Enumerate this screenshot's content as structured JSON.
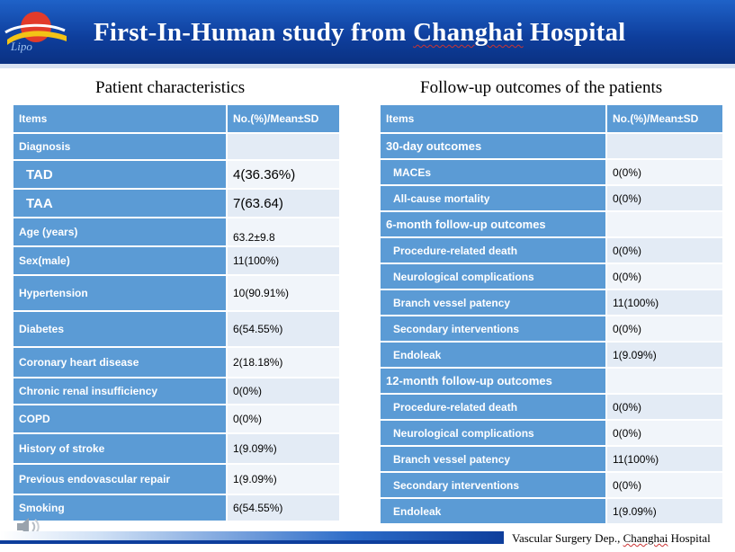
{
  "header": {
    "title_pre": "First-In-Human study from ",
    "title_underlined": "Changhai",
    "title_post": " Hospital"
  },
  "left": {
    "heading": "Patient characteristics",
    "col1": "Items",
    "col2": "No.(%)/Mean±SD",
    "rows": [
      {
        "label": "Diagnosis",
        "value": ""
      },
      {
        "label": "TAD",
        "value": "4(36.36%)"
      },
      {
        "label": "TAA",
        "value": "7(63.64)"
      },
      {
        "label": "Age (years)",
        "value": "63.2±9.8"
      },
      {
        "label": "Sex(male)",
        "value": "11(100%)"
      },
      {
        "label": "Hypertension",
        "value": "10(90.91%)"
      },
      {
        "label": "Diabetes",
        "value": "6(54.55%)"
      },
      {
        "label": "Coronary heart disease",
        "value": "2(18.18%)"
      },
      {
        "label": "Chronic renal insufficiency",
        "value": "0(0%)"
      },
      {
        "label": "COPD",
        "value": "0(0%)"
      },
      {
        "label": "History of stroke",
        "value": "1(9.09%)"
      },
      {
        "label": "Previous endovascular repair",
        "value": "1(9.09%)"
      },
      {
        "label": "Smoking",
        "value": "6(54.55%)"
      }
    ]
  },
  "right": {
    "heading": "Follow-up outcomes of the patients",
    "col1": "Items",
    "col2": "No.(%)/Mean±SD",
    "rows": [
      {
        "label": "30-day outcomes",
        "value": ""
      },
      {
        "label": "MACEs",
        "value": "0(0%)"
      },
      {
        "label": "All-cause mortality",
        "value": "0(0%)"
      },
      {
        "label": "6-month follow-up outcomes",
        "value": ""
      },
      {
        "label": "Procedure-related death",
        "value": "0(0%)"
      },
      {
        "label": "Neurological complications",
        "value": "0(0%)"
      },
      {
        "label": "Branch vessel patency",
        "value": "11(100%)"
      },
      {
        "label": "Secondary interventions",
        "value": "0(0%)"
      },
      {
        "label": "Endoleak",
        "value": "1(9.09%)"
      },
      {
        "label": "12-month follow-up outcomes",
        "value": ""
      },
      {
        "label": "Procedure-related death",
        "value": "0(0%)"
      },
      {
        "label": "Neurological complications",
        "value": "0(0%)"
      },
      {
        "label": "Branch vessel patency",
        "value": "11(100%)"
      },
      {
        "label": "Secondary interventions",
        "value": "0(0%)"
      },
      {
        "label": "Endoleak",
        "value": "1(9.09%)"
      }
    ]
  },
  "footer": {
    "pre": "Vascular Surgery Dep., ",
    "underlined": "Changhai",
    "post": " Hospital"
  },
  "colors": {
    "accent": "#5b9bd5",
    "banner": "#0e3e9c"
  },
  "icons": {
    "logo": "hospital-logo-icon",
    "speaker": "speaker-icon"
  }
}
